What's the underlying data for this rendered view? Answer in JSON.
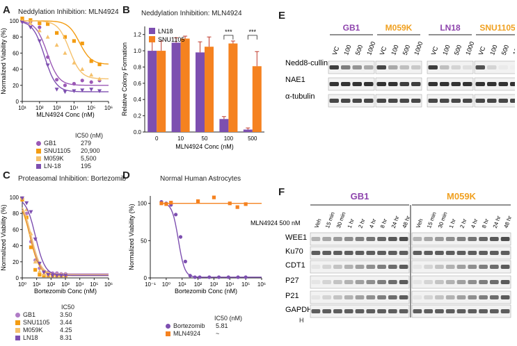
{
  "panels": {
    "A": {
      "label": "A",
      "title": "Neddylation Inhibition: MLN4924",
      "xlabel": "MLN4924 Conc (nM)",
      "ylabel": "Normalized Viability (%)",
      "yticks": [
        "0",
        "20",
        "40",
        "60",
        "80",
        "100"
      ],
      "xticks": [
        "10¹",
        "10²",
        "10³",
        "10⁴",
        "10⁵",
        "10⁶"
      ],
      "ic50_header": "IC50 (nM)",
      "legend": [
        {
          "name": "GB1",
          "ic50": "279",
          "color": "#9b59b6"
        },
        {
          "name": "SNU1105",
          "ic50": "20,900",
          "color": "#f39c12"
        },
        {
          "name": "M059K",
          "ic50": "5,500",
          "color": "#f5c16c"
        },
        {
          "name": "LN-18",
          "ic50": "195",
          "color": "#7d4fb0"
        }
      ]
    },
    "B": {
      "label": "B",
      "title": "Neddylation Inhibition: MLN4924",
      "xlabel": "MLN4924 Conc (nM)",
      "ylabel": "Relative Colony Formation",
      "yticks": [
        "0.0",
        "0.2",
        "0.4",
        "0.6",
        "0.8",
        "1.0",
        "1.2"
      ],
      "significance": [
        "***",
        "***"
      ],
      "legend": [
        {
          "name": "LN18",
          "color": "#7d4fb0"
        },
        {
          "name": "SNU1105",
          "color": "#f58220"
        }
      ]
    },
    "C": {
      "label": "C",
      "title": "Proteasomal Inhibition: Bortezomib",
      "xlabel": "Bortezomib Conc (nM)",
      "ylabel": "Normalized Viability (%)",
      "yticks": [
        "0",
        "20",
        "40",
        "60",
        "80",
        "100"
      ],
      "xticks": [
        "10⁰",
        "10¹",
        "10²",
        "10³",
        "10⁴",
        "10⁵",
        "10⁶"
      ],
      "ic50_header": "IC50",
      "legend": [
        {
          "name": "GB1",
          "ic50": "3.50",
          "color": "#b07cc6"
        },
        {
          "name": "SNU1105",
          "ic50": "3.44",
          "color": "#f39c12"
        },
        {
          "name": "M059K",
          "ic50": "4.25",
          "color": "#f5c16c"
        },
        {
          "name": "LN18",
          "ic50": "8.31",
          "color": "#7d4fb0"
        }
      ]
    },
    "D": {
      "label": "D",
      "title": "Normal Human Astrocytes",
      "xlabel": "Bortezomib Conc (nM)",
      "ylabel": "Normalized Viability (%)",
      "yticks": [
        "0",
        "50",
        "100"
      ],
      "xticks": [
        "10⁻¹",
        "10⁰",
        "10¹",
        "10²",
        "10³",
        "10⁴",
        "10⁵",
        "10⁶"
      ],
      "ic50_header": "IC50 (nM)",
      "legend": [
        {
          "name": "Bortezomib",
          "ic50": "5.81",
          "color": "#7d4fb0"
        },
        {
          "name": "MLN4924",
          "ic50": "~",
          "color": "#f58220"
        }
      ]
    },
    "E": {
      "label": "E",
      "groups": [
        {
          "name": "GB1",
          "color": "#8e44ad"
        },
        {
          "name": "M059K",
          "color": "#f0a020"
        },
        {
          "name": "LN18",
          "color": "#8e44ad"
        },
        {
          "name": "SNU1105",
          "color": "#f0a020"
        }
      ],
      "lanes": [
        "VC",
        "100",
        "500",
        "1000"
      ],
      "rows": [
        "Nedd8-cullin",
        "NAE1",
        "α-tubulin"
      ]
    },
    "F": {
      "label": "F",
      "groups": [
        {
          "name": "GB1",
          "color": "#8e44ad"
        },
        {
          "name": "M059K",
          "color": "#f0a020"
        }
      ],
      "treatment": "MLN4924 500 nM",
      "lanes": [
        "Veh",
        "15 min",
        "30 min",
        "1 hr",
        "2 hr",
        "4 hr",
        "8 hr",
        "24 hr",
        "48 hr"
      ],
      "rows": [
        "WEE1",
        "Ku70",
        "CDT1",
        "P27",
        "P21",
        "GAPDH"
      ],
      "footnote": "H"
    }
  },
  "chart_data": [
    {
      "type": "scatter",
      "panel": "A",
      "title": "Neddylation Inhibition: MLN4924",
      "xlabel": "MLN4924 Conc (nM)",
      "ylabel": "Normalized Viability (%)",
      "xscale": "log",
      "xlim": [
        10,
        1000000
      ],
      "ylim": [
        0,
        100
      ],
      "series": [
        {
          "name": "GB1",
          "ic50": 279,
          "x": [
            10,
            30,
            100,
            300,
            1000,
            3000,
            10000,
            30000,
            100000,
            300000
          ],
          "y": [
            101,
            99,
            92,
            55,
            27,
            20,
            22,
            26,
            24,
            26
          ]
        },
        {
          "name": "SNU1105",
          "ic50": 20900,
          "x": [
            10,
            30,
            100,
            300,
            1000,
            3000,
            10000,
            30000,
            100000,
            300000
          ],
          "y": [
            103,
            101,
            97,
            96,
            85,
            80,
            75,
            72,
            50,
            46
          ]
        },
        {
          "name": "M059K",
          "ic50": 5500,
          "x": [
            10,
            30,
            100,
            300,
            1000,
            3000,
            10000,
            30000,
            100000,
            300000
          ],
          "y": [
            100,
            97,
            88,
            80,
            70,
            60,
            48,
            40,
            33,
            28
          ]
        },
        {
          "name": "LN-18",
          "ic50": 195,
          "x": [
            10,
            30,
            100,
            300,
            1000,
            3000,
            10000,
            30000,
            100000,
            300000
          ],
          "y": [
            98,
            92,
            75,
            45,
            15,
            12,
            13,
            14,
            15,
            13
          ]
        }
      ]
    },
    {
      "type": "bar",
      "panel": "B",
      "title": "Neddylation Inhibition: MLN4924",
      "xlabel": "MLN4924 Conc (nM)",
      "ylabel": "Relative Colony Formation",
      "categories": [
        "0",
        "10",
        "50",
        "100",
        "500"
      ],
      "ylim": [
        0,
        1.3
      ],
      "series": [
        {
          "name": "LN18",
          "values": [
            1.0,
            1.1,
            0.98,
            0.16,
            0.03
          ],
          "err": [
            0.13,
            0.06,
            0.13,
            0.03,
            0.02
          ]
        },
        {
          "name": "SNU1105",
          "values": [
            1.0,
            1.15,
            1.05,
            1.09,
            0.81
          ],
          "err": [
            0.12,
            0.03,
            0.12,
            0.03,
            0.18
          ]
        }
      ]
    },
    {
      "type": "scatter",
      "panel": "C",
      "title": "Proteasomal Inhibition: Bortezomib",
      "xlabel": "Bortezomib Conc (nM)",
      "ylabel": "Normalized Viability (%)",
      "xscale": "log",
      "xlim": [
        1,
        1000000
      ],
      "ylim": [
        0,
        100
      ],
      "series": [
        {
          "name": "GB1",
          "ic50": 3.5,
          "x": [
            1,
            2,
            4,
            8,
            16,
            32,
            64,
            128,
            256,
            512,
            1024
          ],
          "y": [
            98,
            80,
            45,
            22,
            12,
            8,
            7,
            6,
            6,
            5,
            5
          ]
        },
        {
          "name": "SNU1105",
          "ic50": 3.44,
          "x": [
            1,
            2,
            4,
            8,
            16,
            32,
            64,
            128,
            256,
            512,
            1024
          ],
          "y": [
            97,
            75,
            38,
            10,
            4,
            3,
            3,
            3,
            3,
            3,
            3
          ]
        },
        {
          "name": "M059K",
          "ic50": 4.25,
          "x": [
            1,
            2,
            4,
            8,
            16,
            32,
            64,
            128,
            256,
            512,
            1024
          ],
          "y": [
            99,
            85,
            55,
            20,
            8,
            5,
            4,
            4,
            4,
            4,
            4
          ]
        },
        {
          "name": "LN18",
          "ic50": 8.31,
          "x": [
            1,
            2,
            4,
            8,
            16,
            32,
            64,
            128,
            256,
            512,
            1024
          ],
          "y": [
            99,
            93,
            82,
            48,
            18,
            7,
            4,
            3,
            3,
            3,
            3
          ]
        }
      ]
    },
    {
      "type": "scatter",
      "panel": "D",
      "title": "Normal Human Astrocytes",
      "xlabel": "Bortezomib Conc (nM)",
      "ylabel": "Normalized Viability (%)",
      "xscale": "log",
      "xlim": [
        0.1,
        1000000
      ],
      "ylim": [
        0,
        110
      ],
      "series": [
        {
          "name": "Bortezomib",
          "ic50": 5.81,
          "x": [
            0.5,
            1,
            2,
            4,
            8,
            16,
            32,
            64,
            128,
            512,
            2048,
            8192,
            32768,
            100000
          ],
          "y": [
            102,
            100,
            98,
            85,
            55,
            22,
            3,
            1,
            1,
            1,
            1,
            1,
            1,
            1
          ]
        },
        {
          "name": "MLN4924",
          "x": [
            0.5,
            1,
            2,
            100,
            1000,
            10000,
            30000,
            100000
          ],
          "y": [
            100,
            99,
            101,
            103,
            108,
            100,
            95,
            99
          ]
        }
      ]
    }
  ]
}
